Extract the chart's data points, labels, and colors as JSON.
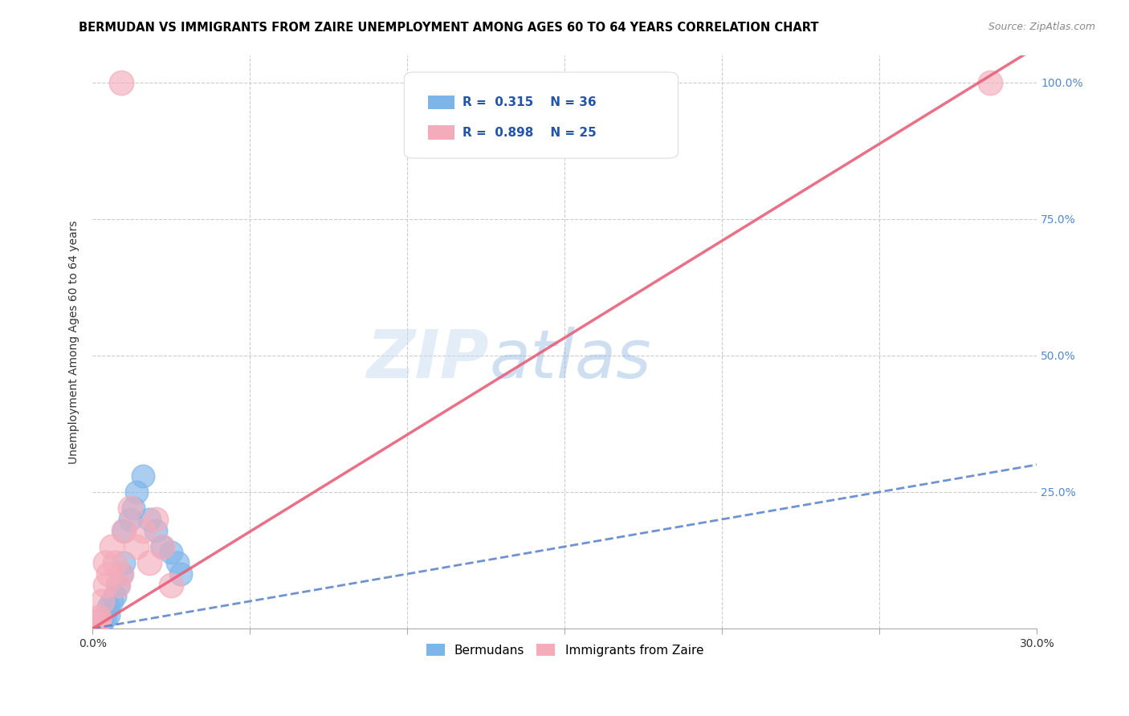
{
  "title": "BERMUDAN VS IMMIGRANTS FROM ZAIRE UNEMPLOYMENT AMONG AGES 60 TO 64 YEARS CORRELATION CHART",
  "source": "Source: ZipAtlas.com",
  "ylabel": "Unemployment Among Ages 60 to 64 years",
  "xlim": [
    0.0,
    0.3
  ],
  "ylim": [
    0.0,
    1.05
  ],
  "xticks": [
    0.0,
    0.05,
    0.1,
    0.15,
    0.2,
    0.25,
    0.3
  ],
  "yticks": [
    0.0,
    0.25,
    0.5,
    0.75,
    1.0
  ],
  "blue_R": 0.315,
  "blue_N": 36,
  "pink_R": 0.898,
  "pink_N": 25,
  "blue_color": "#7EB5E8",
  "pink_color": "#F4ACBA",
  "blue_line_color": "#5580C8",
  "pink_line_color": "#E8607A",
  "legend_label_blue": "Bermudans",
  "legend_label_pink": "Immigrants from Zaire",
  "blue_line_slope": 1.0,
  "pink_line_slope": 3.55,
  "blue_points_x": [
    0.0,
    0.0,
    0.0,
    0.0,
    0.0,
    0.0,
    0.0,
    0.0,
    0.0,
    0.0,
    0.001,
    0.001,
    0.001,
    0.002,
    0.002,
    0.003,
    0.003,
    0.004,
    0.005,
    0.005,
    0.006,
    0.007,
    0.008,
    0.009,
    0.01,
    0.01,
    0.012,
    0.013,
    0.014,
    0.016,
    0.018,
    0.02,
    0.022,
    0.025,
    0.027,
    0.028
  ],
  "blue_points_y": [
    0.0,
    0.0,
    0.0,
    0.0,
    0.001,
    0.001,
    0.002,
    0.003,
    0.004,
    0.005,
    0.003,
    0.005,
    0.007,
    0.006,
    0.008,
    0.01,
    0.015,
    0.02,
    0.025,
    0.04,
    0.05,
    0.06,
    0.08,
    0.1,
    0.12,
    0.18,
    0.2,
    0.22,
    0.25,
    0.28,
    0.2,
    0.18,
    0.15,
    0.14,
    0.12,
    0.1
  ],
  "pink_points_x": [
    0.0,
    0.0,
    0.0,
    0.001,
    0.001,
    0.002,
    0.002,
    0.003,
    0.004,
    0.004,
    0.005,
    0.006,
    0.007,
    0.008,
    0.009,
    0.01,
    0.012,
    0.014,
    0.016,
    0.018,
    0.02,
    0.022,
    0.025,
    0.285,
    0.009
  ],
  "pink_points_y": [
    0.0,
    0.002,
    0.005,
    0.008,
    0.01,
    0.015,
    0.02,
    0.05,
    0.08,
    0.12,
    0.1,
    0.15,
    0.12,
    0.08,
    0.1,
    0.18,
    0.22,
    0.15,
    0.18,
    0.12,
    0.2,
    0.15,
    0.08,
    1.0,
    1.0
  ],
  "watermark_text": "ZIPatlas"
}
